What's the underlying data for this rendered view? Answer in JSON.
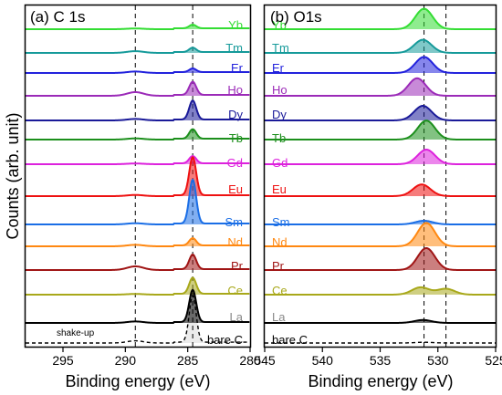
{
  "figure": {
    "ylabel": "Counts (arb. unit)"
  },
  "chart_data": [
    {
      "type": "line",
      "title": "(a) C 1s",
      "xlabel": "Binding energy (eV)",
      "ylabel": "Counts (arb. unit)",
      "xlim": [
        298,
        280
      ],
      "xticks": [
        295,
        290,
        285,
        280
      ],
      "reference_lines": [
        289.2,
        284.6
      ],
      "annotations": [
        "shake-up"
      ],
      "peaks": {
        "main": 284.6,
        "shake_up": 289.2
      },
      "series": [
        {
          "name": "Yb",
          "color": "#33dd33",
          "peak_height": 0.25,
          "shake_up": 0.05
        },
        {
          "name": "Tm",
          "color": "#159a9a",
          "peak_height": 0.3,
          "shake_up": 0.12
        },
        {
          "name": "Er",
          "color": "#2222dd",
          "peak_height": 0.25,
          "shake_up": 0.1
        },
        {
          "name": "Ho",
          "color": "#9b2ab8",
          "peak_height": 0.9,
          "shake_up": 0.25
        },
        {
          "name": "Dy",
          "color": "#1a1a99",
          "peak_height": 1.3,
          "shake_up": 0.1
        },
        {
          "name": "Tb",
          "color": "#1c8f1c",
          "peak_height": 0.65,
          "shake_up": 0.08
        },
        {
          "name": "Gd",
          "color": "#dd22dd",
          "peak_height": 0.5,
          "shake_up": 0.05
        },
        {
          "name": "Eu",
          "color": "#ee1111",
          "peak_height": 2.6,
          "shake_up": 0.08
        },
        {
          "name": "Sm",
          "color": "#1a6ee6",
          "peak_height": 3.0,
          "shake_up": 0.08
        },
        {
          "name": "Nd",
          "color": "#ff8811",
          "peak_height": 0.5,
          "shake_up": 0.1
        },
        {
          "name": "Pr",
          "color": "#a01515",
          "peak_height": 1.0,
          "shake_up": 0.25
        },
        {
          "name": "Ce",
          "color": "#a8a81a",
          "peak_height": 1.1,
          "shake_up": 0.05
        },
        {
          "name": "La",
          "color": "#000000",
          "peak_height": 2.2,
          "shake_up": 0.1
        },
        {
          "name": "bare C",
          "color": "#000000",
          "peak_height": 3.2,
          "shake_up": 0.15,
          "dashed": true
        }
      ]
    },
    {
      "type": "line",
      "title": "(b) O1s",
      "xlabel": "Binding energy (eV)",
      "xlim": [
        545,
        525
      ],
      "xticks": [
        545,
        540,
        535,
        530,
        525
      ],
      "reference_lines": [
        531.2,
        529.3
      ],
      "series": [
        {
          "name": "Yb",
          "color": "#33dd33",
          "peaks": [
            {
              "center": 531.2,
              "height": 1.4
            }
          ]
        },
        {
          "name": "Tm",
          "color": "#159a9a",
          "peaks": [
            {
              "center": 531.3,
              "height": 0.9
            }
          ]
        },
        {
          "name": "Er",
          "color": "#2222dd",
          "peaks": [
            {
              "center": 531.2,
              "height": 1.1
            }
          ]
        },
        {
          "name": "Ho",
          "color": "#9b2ab8",
          "peaks": [
            {
              "center": 531.8,
              "height": 1.2
            }
          ]
        },
        {
          "name": "Dy",
          "color": "#1a1a99",
          "peaks": [
            {
              "center": 531.3,
              "height": 1.0
            }
          ]
        },
        {
          "name": "Tb",
          "color": "#1c8f1c",
          "peaks": [
            {
              "center": 531.0,
              "height": 1.3
            }
          ]
        },
        {
          "name": "Gd",
          "color": "#dd22dd",
          "peaks": [
            {
              "center": 531.0,
              "height": 1.0
            }
          ]
        },
        {
          "name": "Eu",
          "color": "#ee1111",
          "peaks": [
            {
              "center": 531.4,
              "height": 0.8
            }
          ]
        },
        {
          "name": "Sm",
          "color": "#1a6ee6",
          "peaks": [
            {
              "center": 531.2,
              "height": 0.25
            }
          ]
        },
        {
          "name": "Nd",
          "color": "#ff8811",
          "peaks": [
            {
              "center": 531.0,
              "height": 1.6
            }
          ]
        },
        {
          "name": "Pr",
          "color": "#a01515",
          "peaks": [
            {
              "center": 531.0,
              "height": 1.5
            }
          ]
        },
        {
          "name": "Ce",
          "color": "#a8a81a",
          "peaks": [
            {
              "center": 531.5,
              "height": 0.5
            },
            {
              "center": 529.3,
              "height": 0.4
            }
          ]
        },
        {
          "name": "La",
          "color": "#000000",
          "peaks": [
            {
              "center": 531.3,
              "height": 0.2
            }
          ]
        },
        {
          "name": "bare C",
          "color": "#000000",
          "peaks": [
            {
              "center": 531.2,
              "height": 0.05
            }
          ],
          "dashed": true
        }
      ]
    }
  ]
}
